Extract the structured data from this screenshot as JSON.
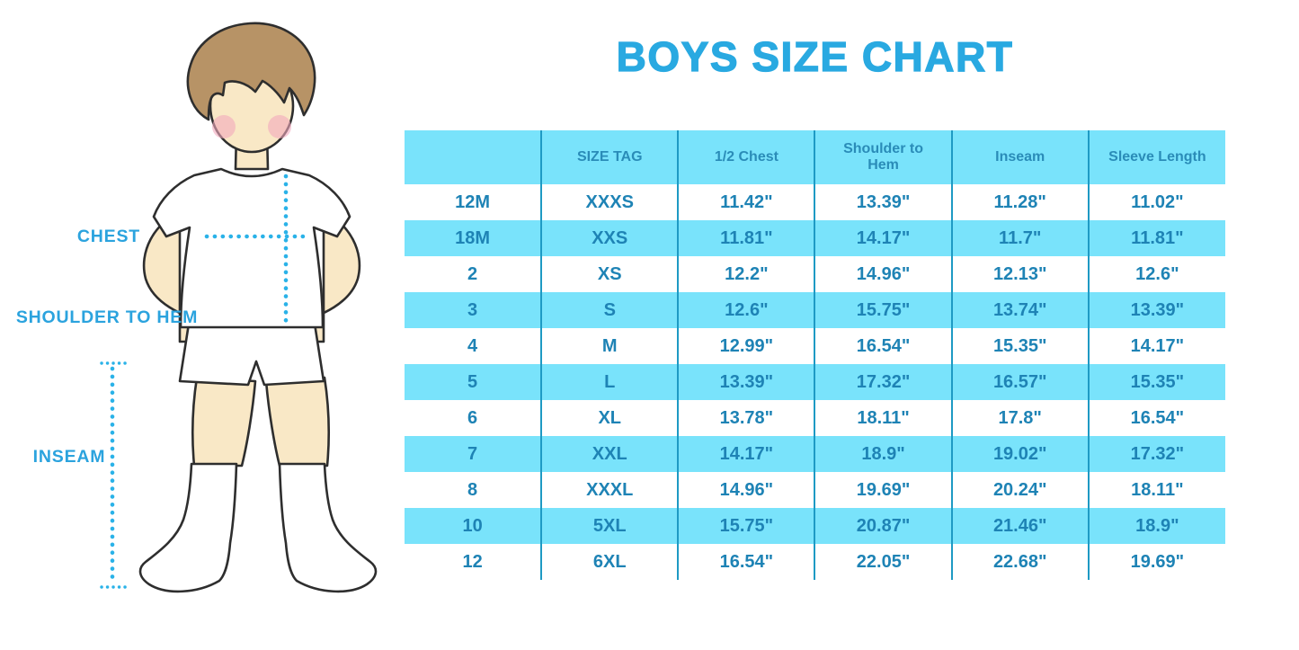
{
  "page_title": "BOYS SIZE CHART",
  "illustration": {
    "chest_label": "CHEST",
    "shoulder_to_hem_label": "SHOULDER TO HEM",
    "inseam_label": "INSEAM"
  },
  "chart_data": {
    "type": "table",
    "title": "BOYS SIZE CHART",
    "columns": [
      "",
      "SIZE TAG",
      "1/2 Chest",
      "Shoulder to Hem",
      "Inseam",
      "Sleeve Length"
    ],
    "rows": [
      [
        "12M",
        "XXXS",
        "11.42\"",
        "13.39\"",
        "11.28\"",
        "11.02\""
      ],
      [
        "18M",
        "XXS",
        "11.81\"",
        "14.17\"",
        "11.7\"",
        "11.81\""
      ],
      [
        "2",
        "XS",
        "12.2\"",
        "14.96\"",
        "12.13\"",
        "12.6\""
      ],
      [
        "3",
        "S",
        "12.6\"",
        "15.75\"",
        "13.74\"",
        "13.39\""
      ],
      [
        "4",
        "M",
        "12.99\"",
        "16.54\"",
        "15.35\"",
        "14.17\""
      ],
      [
        "5",
        "L",
        "13.39\"",
        "17.32\"",
        "16.57\"",
        "15.35\""
      ],
      [
        "6",
        "XL",
        "13.78\"",
        "18.11\"",
        "17.8\"",
        "16.54\""
      ],
      [
        "7",
        "XXL",
        "14.17\"",
        "18.9\"",
        "19.02\"",
        "17.32\""
      ],
      [
        "8",
        "XXXL",
        "14.96\"",
        "19.69\"",
        "20.24\"",
        "18.11\""
      ],
      [
        "10",
        "5XL",
        "15.75\"",
        "20.87\"",
        "21.46\"",
        "18.9\""
      ],
      [
        "12",
        "6XL",
        "16.54\"",
        "22.05\"",
        "22.68\"",
        "19.69\""
      ]
    ],
    "layout": {
      "header_background": "#79E3FB",
      "alternate_row_background": "#79E3FB",
      "highlighted_rows": [
        "18M",
        "3",
        "5",
        "7",
        "10"
      ],
      "column_divider_color": "#1E9AC4"
    }
  },
  "colors": {
    "title_blue": "#29A9E1",
    "label_blue": "#2BA3DE",
    "dotted_line_blue": "#2AB2E8",
    "row_highlight": "#79E3FB",
    "table_border": "#1E9AC4",
    "header_text": "#2A8CB8",
    "cell_text": "#1E83B5",
    "skin": "#F9E8C6",
    "hair": "#B79366"
  }
}
